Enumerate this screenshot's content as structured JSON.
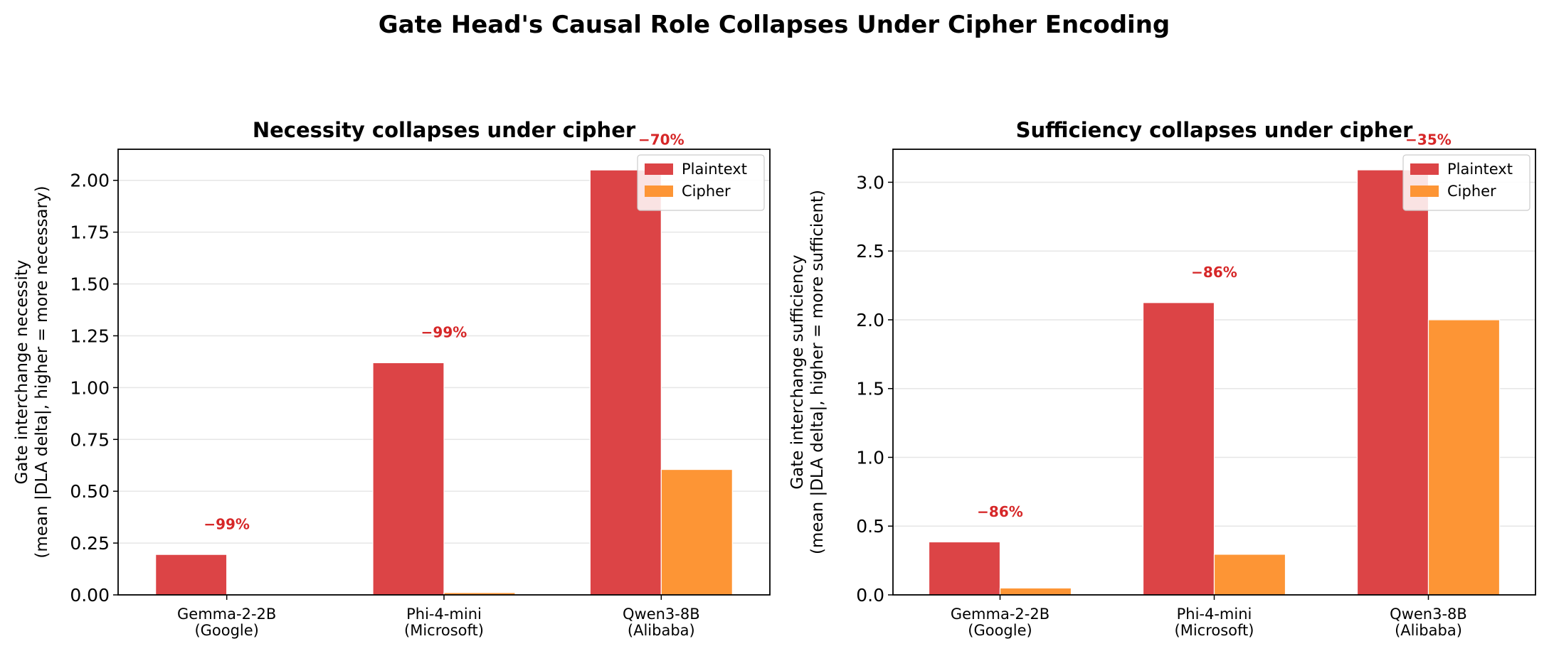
{
  "suptitle": "Gate Head's Causal Role Collapses Under Cipher Encoding",
  "colors": {
    "plaintext": "#dc4446",
    "cipher": "#fd9535",
    "change_label": "#d62728"
  },
  "chart_data": [
    {
      "type": "bar",
      "title": "Necessity collapses under cipher",
      "ylabel_line1": "Gate interchange necessity",
      "ylabel_line2": "(mean |DLA delta|, higher = more necessary)",
      "categories": [
        {
          "name": "Gemma-2-2B",
          "org": "(Google)"
        },
        {
          "name": "Phi-4-mini",
          "org": "(Microsoft)"
        },
        {
          "name": "Qwen3-8B",
          "org": "(Alibaba)"
        }
      ],
      "series": [
        {
          "name": "Plaintext",
          "values": [
            0.195,
            1.12,
            2.05
          ]
        },
        {
          "name": "Cipher",
          "values": [
            0.002,
            0.011,
            0.605
          ]
        }
      ],
      "change_labels": [
        "−99%",
        "−99%",
        "−70%"
      ],
      "ylim": [
        0,
        2.15
      ],
      "yticks": [
        "0.00",
        "0.25",
        "0.50",
        "0.75",
        "1.00",
        "1.25",
        "1.50",
        "1.75",
        "2.00"
      ],
      "legend": [
        "Plaintext",
        "Cipher"
      ],
      "legend_position": "top-right",
      "grid": "horizontal"
    },
    {
      "type": "bar",
      "title": "Sufficiency collapses under cipher",
      "ylabel_line1": "Gate interchange sufficiency",
      "ylabel_line2": "(mean |DLA delta|, higher = more sufficient)",
      "categories": [
        {
          "name": "Gemma-2-2B",
          "org": "(Google)"
        },
        {
          "name": "Phi-4-mini",
          "org": "(Microsoft)"
        },
        {
          "name": "Qwen3-8B",
          "org": "(Alibaba)"
        }
      ],
      "series": [
        {
          "name": "Plaintext",
          "values": [
            0.385,
            2.125,
            3.09
          ]
        },
        {
          "name": "Cipher",
          "values": [
            0.05,
            0.295,
            2.0
          ]
        }
      ],
      "change_labels": [
        "−86%",
        "−86%",
        "−35%"
      ],
      "ylim": [
        0,
        3.24
      ],
      "yticks": [
        "0.0",
        "0.5",
        "1.0",
        "1.5",
        "2.0",
        "2.5",
        "3.0"
      ],
      "legend": [
        "Plaintext",
        "Cipher"
      ],
      "legend_position": "top-right",
      "grid": "horizontal"
    }
  ]
}
